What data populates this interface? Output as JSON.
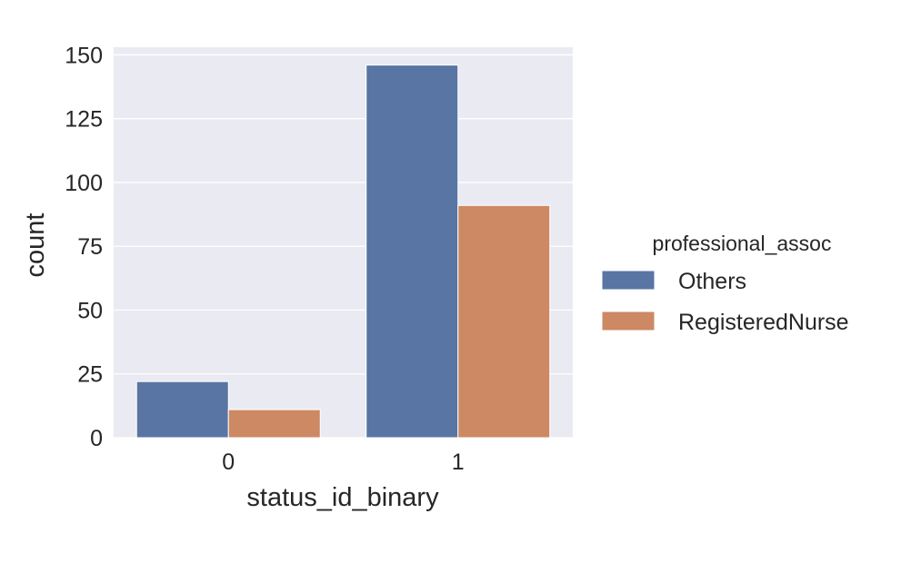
{
  "chart_data": {
    "type": "bar",
    "title": "",
    "xlabel": "status_id_binary",
    "ylabel": "count",
    "categories": [
      "0",
      "1"
    ],
    "series": [
      {
        "name": "Others",
        "values": [
          22,
          146
        ]
      },
      {
        "name": "RegisteredNurse",
        "values": [
          11,
          91
        ]
      }
    ],
    "ylim": [
      0,
      153
    ],
    "yticks": [
      0,
      25,
      50,
      75,
      100,
      125,
      150
    ],
    "grid": true,
    "legend": {
      "title": "professional_assoc",
      "placement": "right"
    },
    "colors": {
      "plot_background": "#eaeaf2",
      "grid": "#ffffff",
      "Others": "#5875a4",
      "RegisteredNurse": "#cc8963"
    }
  }
}
